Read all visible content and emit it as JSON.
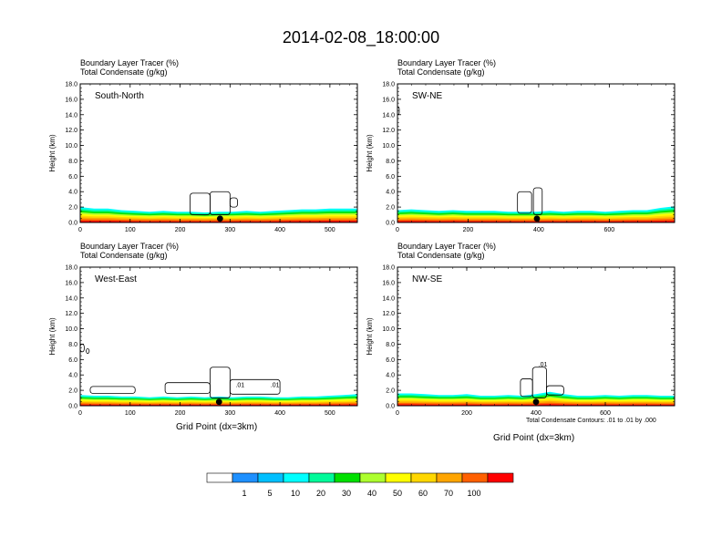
{
  "figure": {
    "title": "2014-02-08_18:00:00",
    "xlabel": "Grid Point (dx=3km)",
    "contour_note": "Total Condensate Contours: .01 to .01 by .000"
  },
  "chart_data": [
    {
      "type": "contour",
      "title_lines": [
        "Boundary Layer Tracer   (%)",
        "Total Condensate   (g/kg)"
      ],
      "panel_label": "South-North",
      "ylabel": "Height (km)",
      "xlabel": "",
      "xlim": [
        0,
        555
      ],
      "ylim": [
        0,
        18
      ],
      "xticks": [
        0,
        100,
        200,
        300,
        400,
        500
      ],
      "yticks": [
        0,
        2,
        4,
        6,
        8,
        10,
        12,
        14,
        16,
        18
      ],
      "tracer_top_km": [
        2.0,
        1.8,
        1.8,
        1.6,
        1.5,
        1.4,
        1.5,
        1.4,
        1.4,
        1.3,
        1.4,
        1.4,
        1.5,
        1.4,
        1.5,
        1.6,
        1.7,
        1.7,
        1.8,
        1.8,
        1.8
      ],
      "condensate_cells": [
        {
          "x0": 220,
          "x1": 260,
          "y0": 1.0,
          "y1": 3.8
        },
        {
          "x0": 260,
          "x1": 300,
          "y0": 1.0,
          "y1": 4.0
        },
        {
          "x0": 300,
          "x1": 315,
          "y0": 2.0,
          "y1": 3.2
        }
      ],
      "marker_x": 280,
      "contour_labels": []
    },
    {
      "type": "contour",
      "title_lines": [
        "Boundary Layer Tracer   (%)",
        "Total Condensate   (g/kg)"
      ],
      "panel_label": "SW-NE",
      "ylabel": "Height (km)",
      "xlabel": "",
      "xlim": [
        0,
        785
      ],
      "ylim": [
        0,
        18
      ],
      "xticks": [
        0,
        200,
        400,
        600
      ],
      "yticks": [
        0,
        2,
        4,
        6,
        8,
        10,
        12,
        14,
        16,
        18
      ],
      "tracer_top_km": [
        1.6,
        1.7,
        1.6,
        1.5,
        1.6,
        1.5,
        1.5,
        1.5,
        1.4,
        1.4,
        1.4,
        1.5,
        1.4,
        1.5,
        1.5,
        1.4,
        1.5,
        1.6,
        1.6,
        1.9,
        2.1
      ],
      "condensate_cells": [
        {
          "x0": 340,
          "x1": 380,
          "y0": 1.2,
          "y1": 4.0
        },
        {
          "x0": 385,
          "x1": 410,
          "y0": 1.0,
          "y1": 4.5
        },
        {
          "x0": 0,
          "x1": 5,
          "y0": 14.0,
          "y1": 15.0
        }
      ],
      "marker_x": 395,
      "contour_labels": []
    },
    {
      "type": "contour",
      "title_lines": [
        "Boundary Layer Tracer   (%)",
        "Total Condensate   (g/kg)"
      ],
      "panel_label": "West-East",
      "ylabel": "Height (km)",
      "xlabel": "Grid Point (dx=3km)",
      "xlim": [
        0,
        555
      ],
      "ylim": [
        0,
        18
      ],
      "xticks": [
        0,
        100,
        200,
        300,
        400,
        500
      ],
      "yticks": [
        0,
        2,
        4,
        6,
        8,
        10,
        12,
        14,
        16,
        18
      ],
      "tracer_top_km": [
        1.4,
        1.3,
        1.3,
        1.2,
        1.2,
        1.1,
        1.2,
        1.1,
        1.2,
        1.1,
        1.2,
        1.1,
        1.2,
        1.2,
        1.1,
        1.1,
        1.2,
        1.2,
        1.3,
        1.4,
        1.5
      ],
      "condensate_cells": [
        {
          "x0": 0,
          "x1": 8,
          "y0": 7.0,
          "y1": 8.0
        },
        {
          "x0": 12,
          "x1": 18,
          "y0": 6.8,
          "y1": 7.4
        },
        {
          "x0": 20,
          "x1": 110,
          "y0": 1.6,
          "y1": 2.5
        },
        {
          "x0": 170,
          "x1": 260,
          "y0": 1.6,
          "y1": 3.0
        },
        {
          "x0": 260,
          "x1": 300,
          "y0": 1.0,
          "y1": 5.0
        },
        {
          "x0": 300,
          "x1": 400,
          "y0": 1.5,
          "y1": 3.4
        }
      ],
      "marker_x": 278,
      "contour_labels": [
        {
          "text": ".01",
          "x": 320,
          "y": 2.4
        },
        {
          "text": ".01",
          "x": 390,
          "y": 2.4
        }
      ]
    },
    {
      "type": "contour",
      "title_lines": [
        "Boundary Layer Tracer   (%)",
        "Total Condensate   (g/kg)"
      ],
      "panel_label": "NW-SE",
      "ylabel": "Height (km)",
      "xlabel": "",
      "xlim": [
        0,
        800
      ],
      "ylim": [
        0,
        18
      ],
      "xticks": [
        0,
        200,
        400,
        600
      ],
      "yticks": [
        0,
        2,
        4,
        6,
        8,
        10,
        12,
        14,
        16,
        18
      ],
      "tracer_top_km": [
        1.6,
        1.6,
        1.5,
        1.4,
        1.4,
        1.5,
        1.3,
        1.3,
        1.4,
        1.3,
        1.5,
        1.8,
        1.5,
        1.3,
        1.3,
        1.4,
        1.3,
        1.4,
        1.4,
        1.3,
        1.3
      ],
      "condensate_cells": [
        {
          "x0": 355,
          "x1": 390,
          "y0": 1.2,
          "y1": 3.5
        },
        {
          "x0": 390,
          "x1": 430,
          "y0": 1.0,
          "y1": 5.0
        },
        {
          "x0": 430,
          "x1": 480,
          "y0": 1.4,
          "y1": 2.6
        }
      ],
      "marker_x": 400,
      "contour_labels": [
        {
          "text": ".01",
          "x": 420,
          "y": 5.1
        }
      ]
    }
  ],
  "colorbar": {
    "colors": [
      "#ffffff",
      "#1e90ff",
      "#00bfff",
      "#00ffff",
      "#00fa9a",
      "#00e000",
      "#adff2f",
      "#ffff00",
      "#ffd700",
      "#ffa500",
      "#ff6000",
      "#ff0000"
    ],
    "labels": [
      "1",
      "5",
      "10",
      "20",
      "30",
      "40",
      "50",
      "60",
      "70",
      "100"
    ]
  }
}
